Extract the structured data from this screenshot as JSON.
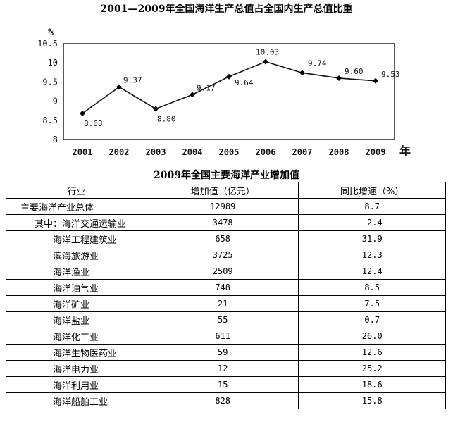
{
  "chart_data": {
    "type": "line",
    "title": "2001—2009年全国海洋生产总值占全国内生产总值比重",
    "ylabel": "%",
    "xlabel": "年",
    "ylim": [
      8,
      10.5
    ],
    "yticks": [
      "8",
      "8.5",
      "9",
      "9.5",
      "10",
      "10.5"
    ],
    "categories": [
      "2001",
      "2002",
      "2003",
      "2004",
      "2005",
      "2006",
      "2007",
      "2008",
      "2009"
    ],
    "values": [
      8.68,
      9.37,
      8.8,
      9.17,
      9.64,
      10.03,
      9.74,
      9.6,
      9.53
    ],
    "labels": [
      "8.68",
      "9.37",
      "8.80",
      "9.17",
      "9.64",
      "10.03",
      "9.74",
      "9.60",
      "9.53"
    ],
    "grid": false,
    "colors": {
      "line": "#111111",
      "marker": "#000000"
    }
  },
  "table": {
    "title": "2009年全国主要海洋产业增加值",
    "headers": [
      "行业",
      "增加值（亿元）",
      "同比增速（%）"
    ],
    "rows": [
      {
        "industry": "主要海洋产业总体",
        "value": "12989",
        "growth": "8.7",
        "level": "top"
      },
      {
        "industry": "其中：海洋交通运输业",
        "value": "3478",
        "growth": "-2.4",
        "level": "l0"
      },
      {
        "industry": "海洋工程建筑业",
        "value": "658",
        "growth": "31.9",
        "level": "l1"
      },
      {
        "industry": "滨海旅游业",
        "value": "3725",
        "growth": "12.3",
        "level": "l1"
      },
      {
        "industry": "海洋渔业",
        "value": "2509",
        "growth": "12.4",
        "level": "l1"
      },
      {
        "industry": "海洋油气业",
        "value": "748",
        "growth": "8.5",
        "level": "l1"
      },
      {
        "industry": "海洋矿业",
        "value": "21",
        "growth": "7.5",
        "level": "l1"
      },
      {
        "industry": "海洋盐业",
        "value": "55",
        "growth": "0.7",
        "level": "l1"
      },
      {
        "industry": "海洋化工业",
        "value": "611",
        "growth": "26.0",
        "level": "l1"
      },
      {
        "industry": "海洋生物医药业",
        "value": "59",
        "growth": "12.6",
        "level": "l1"
      },
      {
        "industry": "海洋电力业",
        "value": "12",
        "growth": "25.2",
        "level": "l1"
      },
      {
        "industry": "海洋利用业",
        "value": "15",
        "growth": "18.6",
        "level": "l1"
      },
      {
        "industry": "海洋船舶工业",
        "value": "828",
        "growth": "15.8",
        "level": "l1"
      }
    ]
  }
}
